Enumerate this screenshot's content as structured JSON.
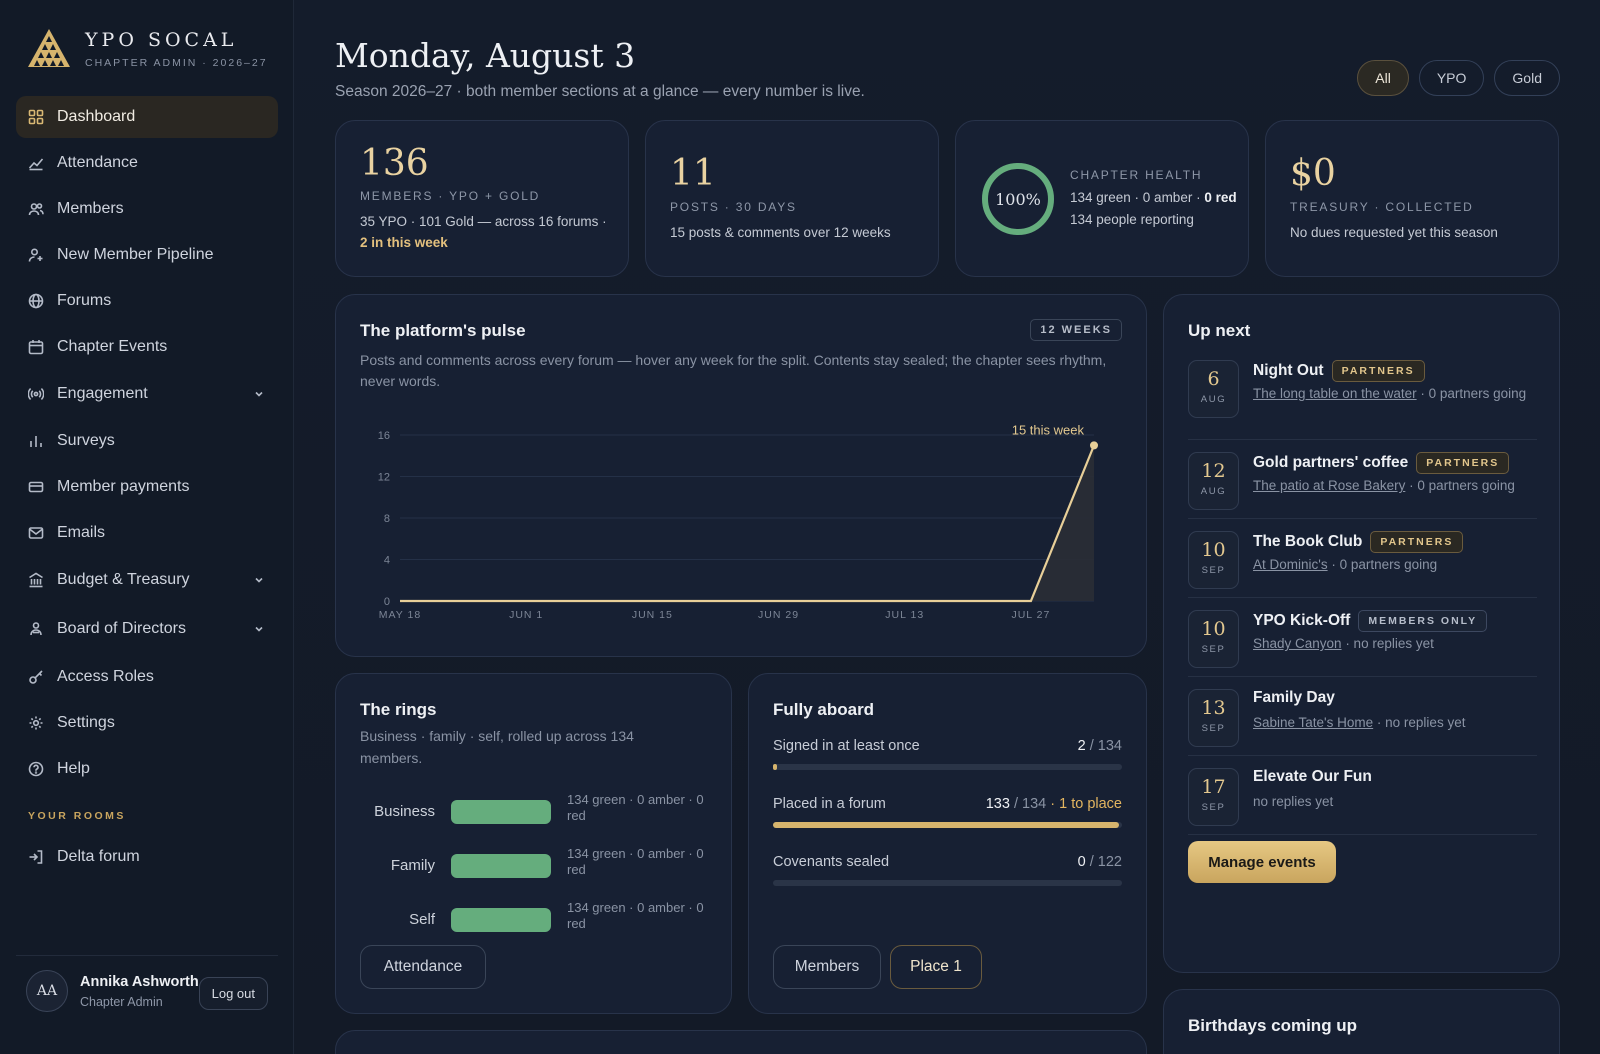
{
  "brand": {
    "name": "YPO SOCAL",
    "subtitle": "CHAPTER ADMIN · 2026–27"
  },
  "sidebar": {
    "items": [
      {
        "label": "Dashboard",
        "icon": "grid-icon",
        "active": true
      },
      {
        "label": "Attendance",
        "icon": "trend-icon"
      },
      {
        "label": "Members",
        "icon": "users-icon"
      },
      {
        "label": "New Member Pipeline",
        "icon": "user-plus-icon"
      },
      {
        "label": "Forums",
        "icon": "globe-icon"
      },
      {
        "label": "Chapter Events",
        "icon": "calendar-icon"
      },
      {
        "label": "Engagement",
        "icon": "broadcast-icon",
        "expandable": true
      },
      {
        "label": "Surveys",
        "icon": "bar-chart-icon"
      },
      {
        "label": "Member payments",
        "icon": "card-icon"
      },
      {
        "label": "Emails",
        "icon": "mail-icon"
      },
      {
        "label": "Budget & Treasury",
        "icon": "bank-icon",
        "expandable": true
      },
      {
        "label": "Board of Directors",
        "icon": "board-icon",
        "expandable": true
      },
      {
        "label": "Access Roles",
        "icon": "key-icon"
      },
      {
        "label": "Settings",
        "icon": "gear-icon"
      },
      {
        "label": "Help",
        "icon": "help-icon"
      }
    ],
    "rooms_label": "YOUR ROOMS",
    "rooms": [
      {
        "label": "Delta forum",
        "icon": "door-icon"
      }
    ]
  },
  "user": {
    "initials": "AA",
    "name": "Annika Ashworth",
    "role": "Chapter Admin",
    "logout_label": "Log out"
  },
  "header": {
    "title": "Monday, August 3",
    "subtitle": "Season 2026–27 · both member sections at a glance — every number is live.",
    "filters": [
      {
        "label": "All",
        "active": true
      },
      {
        "label": "YPO"
      },
      {
        "label": "Gold"
      }
    ]
  },
  "stats": {
    "members": {
      "value": "136",
      "label": "MEMBERS · YPO + GOLD",
      "desc": "35 YPO · 101 Gold — across 16 forums ·",
      "highlight": "2 in this week"
    },
    "posts": {
      "value": "11",
      "label": "POSTS · 30 DAYS",
      "desc": "15 posts & comments over 12 weeks"
    },
    "health": {
      "percent": "100%",
      "fraction": 1.0,
      "label": "CHAPTER HEALTH",
      "desc": "134 green · 0 amber ·",
      "desc_red": "0 red",
      "reporting": "134 people reporting",
      "color": "#65ad7d"
    },
    "treasury": {
      "value": "$0",
      "label": "TREASURY · COLLECTED",
      "desc": "No dues requested yet this season"
    }
  },
  "pulse": {
    "title": "The platform's pulse",
    "badge": "12 WEEKS",
    "desc": "Posts and comments across every forum — hover any week for the split. Contents stay sealed; the chapter sees rhythm, never words.",
    "callout": "15 this week"
  },
  "chart_data": {
    "type": "area",
    "x": [
      "MAY 18",
      "MAY 25",
      "JUN 1",
      "JUN 8",
      "JUN 15",
      "JUN 22",
      "JUN 29",
      "JUL 6",
      "JUL 13",
      "JUL 20",
      "JUL 27",
      "AUG 3"
    ],
    "x_tick_labels": [
      "MAY 18",
      "JUN 1",
      "JUN 15",
      "JUN 29",
      "JUL 13",
      "JUL 27"
    ],
    "values": [
      0,
      0,
      0,
      0,
      0,
      0,
      0,
      0,
      0,
      0,
      0,
      15
    ],
    "yticks": [
      0,
      4,
      8,
      12,
      16
    ],
    "ylim": [
      0,
      16
    ],
    "grid": true,
    "line_color": "#e8cf98"
  },
  "up_next": {
    "title": "Up next",
    "events": [
      {
        "day": "6",
        "month": "AUG",
        "name": "Night Out",
        "tag": "PARTNERS",
        "place": "The long table on the water",
        "note": " · 0 partners going"
      },
      {
        "day": "12",
        "month": "AUG",
        "name": "Gold partners' coffee",
        "tag": "PARTNERS",
        "place": "The patio at Rose Bakery",
        "note": " · 0 partners going"
      },
      {
        "day": "10",
        "month": "SEP",
        "name": "The Book Club",
        "tag": "PARTNERS",
        "place": "At Dominic's",
        "note": " · 0 partners going"
      },
      {
        "day": "10",
        "month": "SEP",
        "name": "YPO Kick-Off",
        "tag": "MEMBERS ONLY",
        "place": "Shady Canyon",
        "note": " · no replies yet"
      },
      {
        "day": "13",
        "month": "SEP",
        "name": "Family Day",
        "tag": "",
        "place": "Sabine Tate's Home",
        "note": " · no replies yet"
      },
      {
        "day": "17",
        "month": "SEP",
        "name": "Elevate Our Fun",
        "tag": "",
        "place": "",
        "note": "no replies yet"
      }
    ],
    "button": "Manage events"
  },
  "rings": {
    "title": "The rings",
    "desc": "Business · family · self, rolled up across 134 members.",
    "rows": [
      {
        "label": "Business",
        "text": "134 green · 0 amber · 0 red",
        "green_fraction": 1.0
      },
      {
        "label": "Family",
        "text": "134 green · 0 amber · 0 red",
        "green_fraction": 1.0
      },
      {
        "label": "Self",
        "text": "134 green · 0 amber · 0 red",
        "green_fraction": 1.0
      }
    ],
    "button": "Attendance"
  },
  "aboard": {
    "title": "Fully aboard",
    "rows": [
      {
        "label": "Signed in at least once",
        "value": "2",
        "total": "/ 134",
        "extra": "",
        "fraction": 0.015
      },
      {
        "label": "Placed in a forum",
        "value": "133",
        "total": "/ 134",
        "extra": "· 1 to place",
        "fraction": 0.99
      },
      {
        "label": "Covenants sealed",
        "value": "0",
        "total": "/ 122",
        "extra": "",
        "fraction": 0
      }
    ],
    "button_members": "Members",
    "button_place": "Place 1"
  },
  "birthdays": {
    "title": "Birthdays coming up"
  }
}
